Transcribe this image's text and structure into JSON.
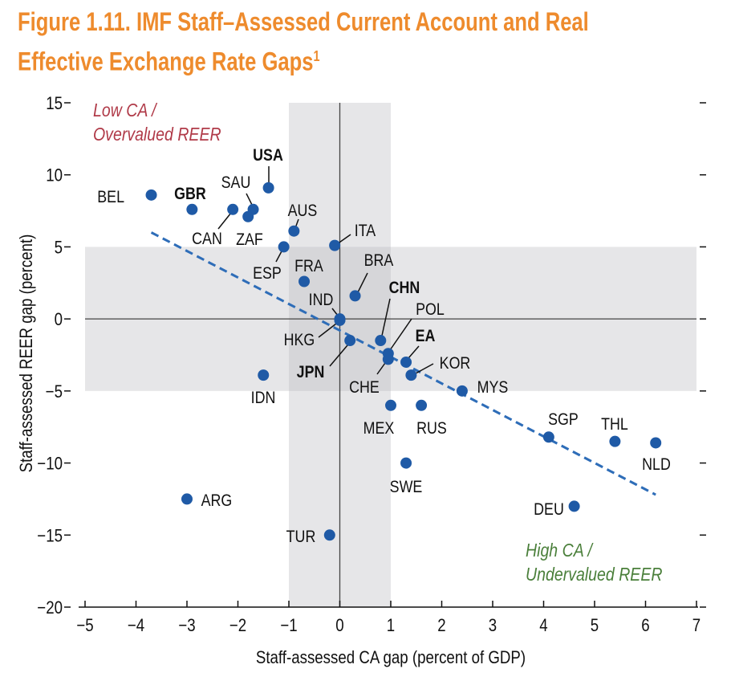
{
  "chart_data": {
    "type": "scatter",
    "title": "Figure 1.11. IMF Staff–Assessed Current Account and Real Effective Exchange Rate Gaps",
    "title_line1": "Figure 1.11. IMF Staff–Assessed Current Account and Real",
    "title_line2": "Effective Exchange Rate Gaps",
    "title_footnote": "1",
    "xlabel": "Staff-assessed CA gap (percent of GDP)",
    "ylabel": "Staff-assessed REER gap (percent)",
    "xlim": [
      -5,
      7
    ],
    "ylim": [
      -20,
      15
    ],
    "xticks": [
      -5,
      -4,
      -3,
      -2,
      -1,
      0,
      1,
      2,
      3,
      4,
      5,
      6,
      7
    ],
    "yticks": [
      15,
      10,
      5,
      0,
      -5,
      -10,
      -15,
      -20
    ],
    "shaded_regions": {
      "x_band": [
        -1,
        1
      ],
      "y_band": [
        -5,
        5
      ]
    },
    "annotations": {
      "top_left_line1": "Low CA /",
      "top_left_line2": "Overvalued REER",
      "bottom_right_line1": "High CA /",
      "bottom_right_line2": "Undervalued REER"
    },
    "trend_line": {
      "x": [
        -3.7,
        6.2
      ],
      "y": [
        6.0,
        -12.2
      ],
      "style": "dashed"
    },
    "points": [
      {
        "label": "BEL",
        "x": -3.7,
        "y": 8.6,
        "bold": false
      },
      {
        "label": "GBR",
        "x": -2.9,
        "y": 7.6,
        "bold": true
      },
      {
        "label": "CAN",
        "x": -2.1,
        "y": 7.6,
        "bold": false
      },
      {
        "label": "SAU",
        "x": -1.7,
        "y": 7.6,
        "bold": false
      },
      {
        "label": "ZAF",
        "x": -1.8,
        "y": 7.1,
        "bold": false
      },
      {
        "label": "USA",
        "x": -1.4,
        "y": 9.1,
        "bold": true
      },
      {
        "label": "AUS",
        "x": -0.9,
        "y": 6.1,
        "bold": false
      },
      {
        "label": "ESP",
        "x": -1.1,
        "y": 5.0,
        "bold": false
      },
      {
        "label": "ITA",
        "x": -0.1,
        "y": 5.1,
        "bold": false
      },
      {
        "label": "FRA",
        "x": -0.7,
        "y": 2.6,
        "bold": false
      },
      {
        "label": "BRA",
        "x": 0.3,
        "y": 1.6,
        "bold": false
      },
      {
        "label": "IND",
        "x": 0.0,
        "y": 0.0,
        "bold": false
      },
      {
        "label": "HKG",
        "x": 0.0,
        "y": -0.1,
        "bold": false
      },
      {
        "label": "CHN",
        "x": 0.8,
        "y": -1.5,
        "bold": true
      },
      {
        "label": "POL",
        "x": 0.95,
        "y": -2.4,
        "bold": false
      },
      {
        "label": "JPN",
        "x": 0.2,
        "y": -1.5,
        "bold": true
      },
      {
        "label": "EA",
        "x": 1.3,
        "y": -3.0,
        "bold": true
      },
      {
        "label": "CHE",
        "x": 0.95,
        "y": -2.8,
        "bold": false
      },
      {
        "label": "KOR",
        "x": 1.4,
        "y": -3.9,
        "bold": false
      },
      {
        "label": "MYS",
        "x": 2.4,
        "y": -5.0,
        "bold": false
      },
      {
        "label": "IDN",
        "x": -1.5,
        "y": -3.9,
        "bold": false
      },
      {
        "label": "MEX",
        "x": 1.0,
        "y": -6.0,
        "bold": false
      },
      {
        "label": "RUS",
        "x": 1.6,
        "y": -6.0,
        "bold": false
      },
      {
        "label": "SWE",
        "x": 1.3,
        "y": -10.0,
        "bold": false
      },
      {
        "label": "SGP",
        "x": 4.1,
        "y": -8.2,
        "bold": false
      },
      {
        "label": "THL",
        "x": 5.4,
        "y": -8.5,
        "bold": false
      },
      {
        "label": "NLD",
        "x": 6.2,
        "y": -8.6,
        "bold": false
      },
      {
        "label": "DEU",
        "x": 4.6,
        "y": -13.0,
        "bold": false
      },
      {
        "label": "ARG",
        "x": -3.0,
        "y": -12.5,
        "bold": false
      },
      {
        "label": "TUR",
        "x": -0.2,
        "y": -15.0,
        "bold": false
      }
    ],
    "colors": {
      "title": "#EE8B2D",
      "points": "#1F5AA6",
      "trend": "#2E6DB8",
      "low_ca": "#B03A48",
      "high_ca": "#4A7F3A",
      "shade": "#E6E6E8"
    }
  }
}
